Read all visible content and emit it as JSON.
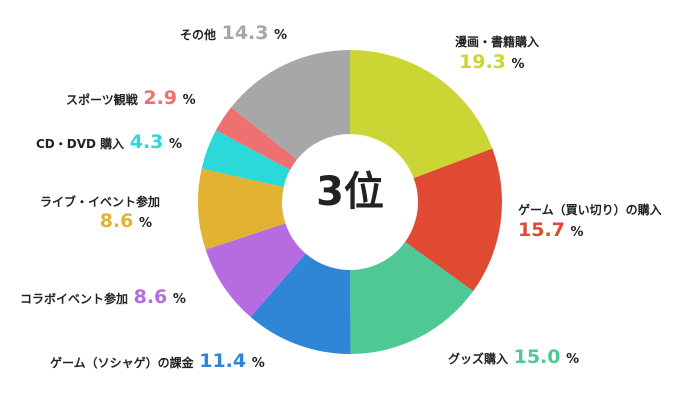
{
  "chart_data": {
    "type": "pie",
    "center_label": "3位",
    "slices": [
      {
        "name": "漫画・書籍購入",
        "value": "19.3",
        "unit": "%",
        "color": "#cbd635"
      },
      {
        "name": "ゲーム（買い切り）の購入",
        "value": "15.7",
        "unit": "%",
        "color": "#e04a33"
      },
      {
        "name": "グッズ購入",
        "value": "15.0",
        "unit": "%",
        "color": "#4ec995"
      },
      {
        "name": "ゲーム（ソシャゲ）の課金",
        "value": "11.4",
        "unit": "%",
        "color": "#2f86d6"
      },
      {
        "name": "コラボイベント参加",
        "value": "8.6",
        "unit": "%",
        "color": "#b76be0"
      },
      {
        "name": "ライブ・イベント参加",
        "value": "8.6",
        "unit": "%",
        "color": "#e2b233"
      },
      {
        "name": "CD・DVD 購入",
        "value": "4.3",
        "unit": "%",
        "color": "#2bdad8"
      },
      {
        "name": "スポーツ観戦",
        "value": "2.9",
        "unit": "%",
        "color": "#ef7070"
      },
      {
        "name": "その他",
        "value": "14.3",
        "unit": "%",
        "color": "#a7a7a7"
      }
    ]
  }
}
